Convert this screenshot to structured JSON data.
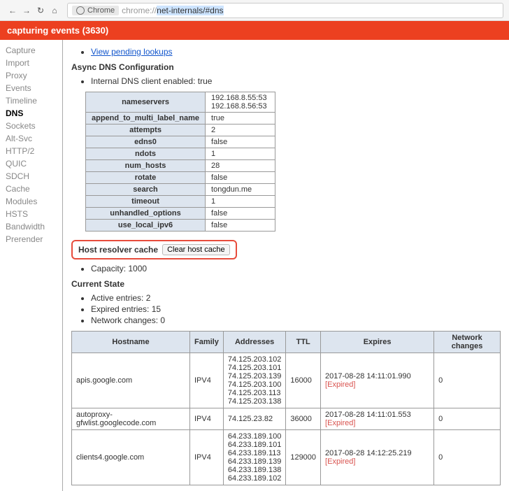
{
  "toolbar": {
    "chrome_chip": "Chrome",
    "url_prefix": "chrome://",
    "url_selected": "net-internals/#dns"
  },
  "header": {
    "text": "capturing events (3630)"
  },
  "sidebar": {
    "items": [
      {
        "label": "Capture",
        "active": false
      },
      {
        "label": "Import",
        "active": false
      },
      {
        "label": "Proxy",
        "active": false
      },
      {
        "label": "Events",
        "active": false
      },
      {
        "label": "Timeline",
        "active": false
      },
      {
        "label": "DNS",
        "active": true
      },
      {
        "label": "Sockets",
        "active": false
      },
      {
        "label": "Alt-Svc",
        "active": false
      },
      {
        "label": "HTTP/2",
        "active": false
      },
      {
        "label": "QUIC",
        "active": false
      },
      {
        "label": "SDCH",
        "active": false
      },
      {
        "label": "Cache",
        "active": false
      },
      {
        "label": "Modules",
        "active": false
      },
      {
        "label": "HSTS",
        "active": false
      },
      {
        "label": "Bandwidth",
        "active": false
      },
      {
        "label": "Prerender",
        "active": false
      }
    ]
  },
  "content": {
    "view_pending": "View pending lookups",
    "async_heading": "Async DNS Configuration",
    "internal_client": "Internal DNS client enabled: true",
    "config_rows": [
      {
        "key": "nameservers",
        "val": "192.168.8.55:53\n192.168.8.56:53"
      },
      {
        "key": "append_to_multi_label_name",
        "val": "true"
      },
      {
        "key": "attempts",
        "val": "2"
      },
      {
        "key": "edns0",
        "val": "false"
      },
      {
        "key": "ndots",
        "val": "1"
      },
      {
        "key": "num_hosts",
        "val": "28"
      },
      {
        "key": "rotate",
        "val": "false"
      },
      {
        "key": "search",
        "val": "tongdun.me"
      },
      {
        "key": "timeout",
        "val": "1"
      },
      {
        "key": "unhandled_options",
        "val": "false"
      },
      {
        "key": "use_local_ipv6",
        "val": "false"
      }
    ],
    "host_resolver_label": "Host resolver cache",
    "clear_button": "Clear host cache",
    "capacity": "Capacity: 1000",
    "current_state_heading": "Current State",
    "state_bullets": [
      "Active entries: 2",
      "Expired entries: 15",
      "Network changes: 0"
    ],
    "state_headers": [
      "Hostname",
      "Family",
      "Addresses",
      "TTL",
      "Expires",
      "Network changes"
    ],
    "state_rows": [
      {
        "hostname": "apis.google.com",
        "family": "IPV4",
        "addresses": "74.125.203.102\n74.125.203.101\n74.125.203.139\n74.125.203.100\n74.125.203.113\n74.125.203.138",
        "ttl": "16000",
        "expires": "2017-08-28 14:11:01.990",
        "expired": "[Expired]",
        "changes": "0"
      },
      {
        "hostname": "autoproxy-gfwlist.googlecode.com",
        "family": "IPV4",
        "addresses": "74.125.23.82",
        "ttl": "36000",
        "expires": "2017-08-28 14:11:01.553",
        "expired": "[Expired]",
        "changes": "0"
      },
      {
        "hostname": "clients4.google.com",
        "family": "IPV4",
        "addresses": "64.233.189.100\n64.233.189.101\n64.233.189.113\n64.233.189.139\n64.233.189.138\n64.233.189.102",
        "ttl": "129000",
        "expires": "2017-08-28 14:12:25.219",
        "expired": "[Expired]",
        "changes": "0"
      }
    ]
  }
}
